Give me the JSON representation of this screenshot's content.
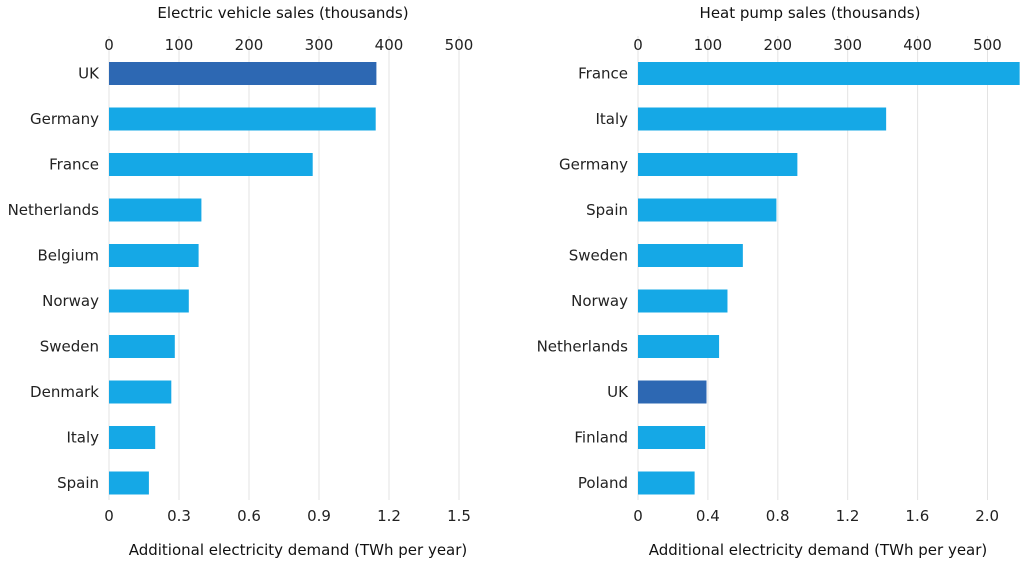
{
  "chart_data": [
    {
      "type": "bar",
      "orientation": "horizontal",
      "title": "Electric vehicle sales (thousands)",
      "xlabel": "Additional electricity demand (TWh per year)",
      "categories": [
        "UK",
        "Germany",
        "France",
        "Netherlands",
        "Belgium",
        "Norway",
        "Sweden",
        "Denmark",
        "Italy",
        "Spain"
      ],
      "values": [
        382,
        381,
        291,
        132,
        128,
        114,
        94,
        89,
        66,
        57
      ],
      "highlight_category": "UK",
      "top_axis": {
        "ticks": [
          0,
          100,
          200,
          300,
          400,
          500
        ],
        "range": [
          0,
          500
        ]
      },
      "bottom_axis": {
        "ticks": [
          "0",
          "0.3",
          "0.6",
          "0.9",
          "1.2",
          "1.5"
        ],
        "range": [
          0,
          1.5
        ]
      },
      "grid": true
    },
    {
      "type": "bar",
      "orientation": "horizontal",
      "title": "Heat pump sales (thousands)",
      "xlabel": "Additional electricity demand (TWh per year)",
      "categories": [
        "France",
        "Italy",
        "Germany",
        "Spain",
        "Sweden",
        "Norway",
        "Netherlands",
        "UK",
        "Finland",
        "Poland"
      ],
      "values": [
        546,
        355,
        228,
        198,
        150,
        128,
        116,
        98,
        96,
        81
      ],
      "highlight_category": "UK",
      "top_axis": {
        "ticks": [
          0,
          100,
          200,
          300,
          400,
          500
        ],
        "range": [
          0,
          547
        ]
      },
      "bottom_axis": {
        "ticks": [
          "0",
          "0.4",
          "0.8",
          "1.2",
          "1.6",
          "2.0"
        ],
        "range": [
          0,
          2.19
        ]
      },
      "grid": true
    }
  ],
  "colors": {
    "bar": "#15a8e6",
    "highlight": "#2d68b3",
    "grid": "#e3e3e3"
  }
}
